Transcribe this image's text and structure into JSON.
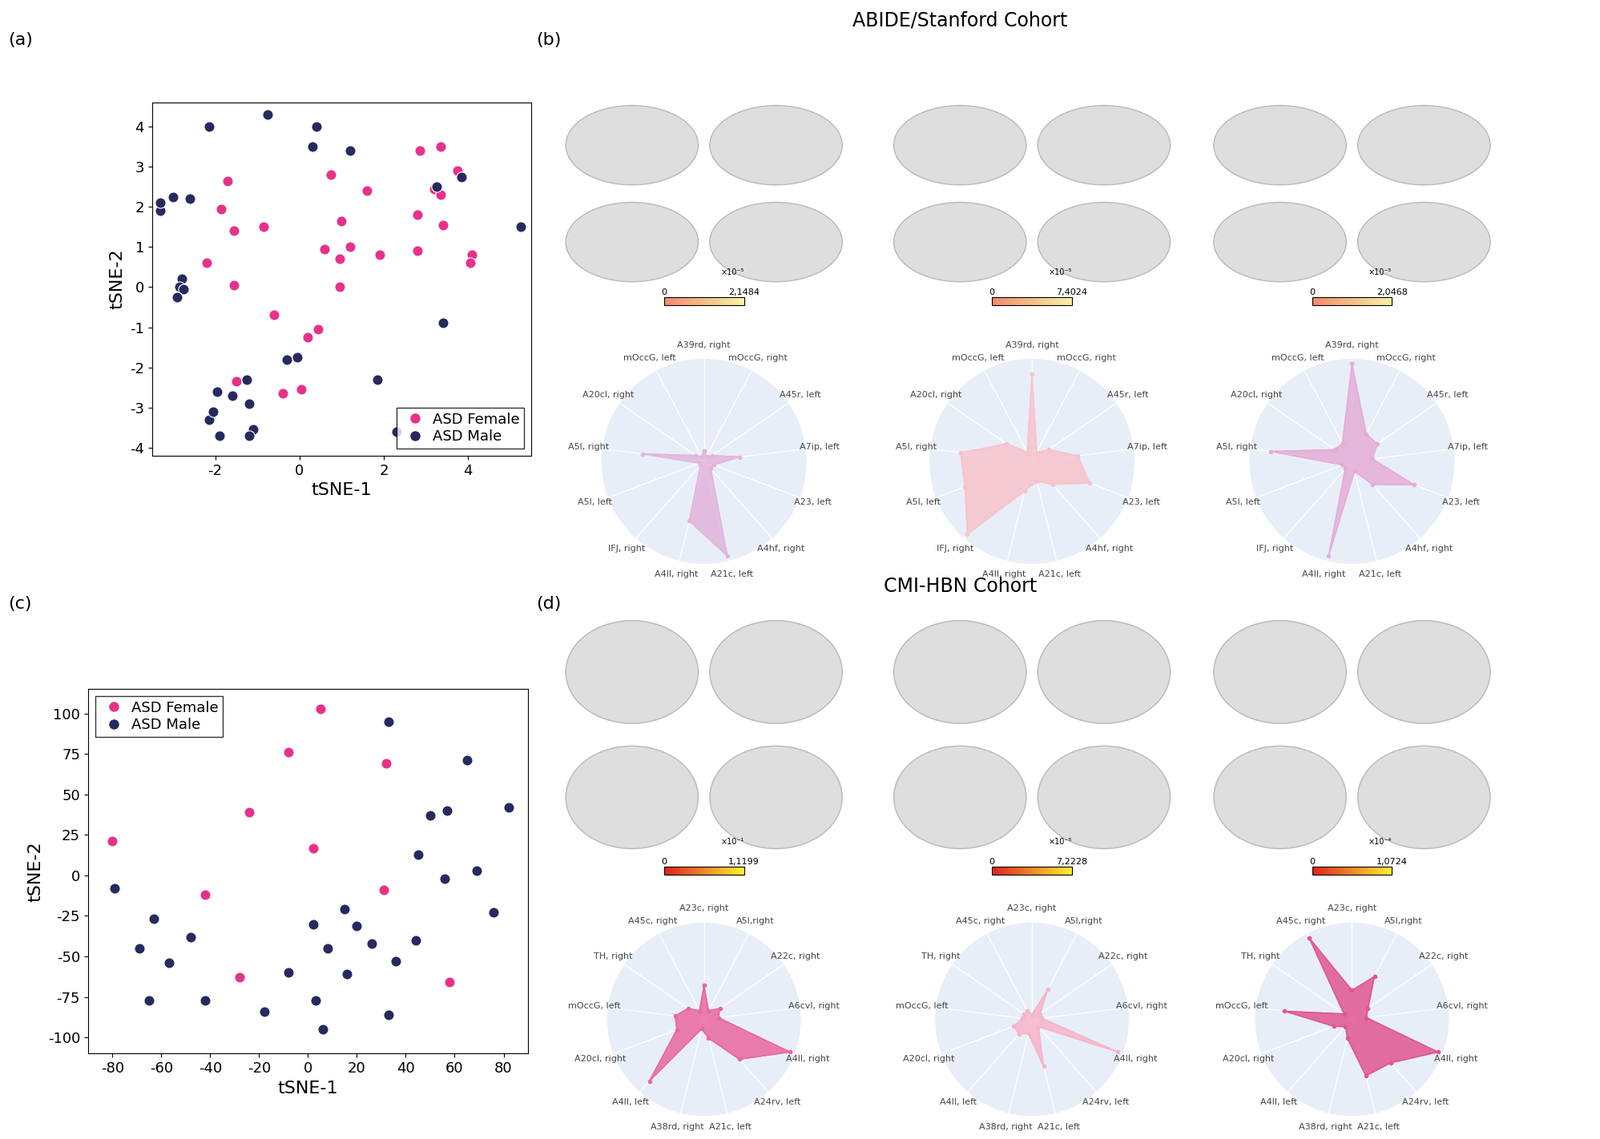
{
  "figure": {
    "headings": [
      "ABIDE/Stanford Cohort",
      "CMI-HBN Cohort"
    ],
    "panel_labels": [
      "(a)",
      "(b)",
      "(c)",
      "(d)"
    ]
  },
  "chart_data": [
    {
      "type": "scatter",
      "panel": "(a)",
      "x_label": "tSNE-1",
      "y_label": "tSNE-2",
      "xlim": [
        -3.5,
        5.5
      ],
      "xticks": [
        -2,
        0,
        2,
        4
      ],
      "ylim": [
        -4.2,
        4.6
      ],
      "yticks": [
        -4,
        -3,
        -2,
        -1,
        0,
        1,
        2,
        3,
        4
      ],
      "legend": "lower right",
      "series": [
        {
          "name": "ASD Female",
          "color": "#e8318a",
          "x": [
            -1.7,
            -1.85,
            -1.55,
            -0.85,
            -2.2,
            -1.55,
            0.75,
            1.0,
            0.6,
            1.2,
            0.95,
            0.95,
            1.6,
            1.9,
            2.85,
            3.35,
            3.2,
            3.35,
            2.8,
            3.75,
            3.4,
            2.8,
            4.1,
            4.05,
            -0.6,
            0.45,
            0.2,
            -0.4,
            0.05,
            -1.5
          ],
          "y": [
            2.65,
            1.95,
            1.4,
            1.5,
            0.6,
            0.05,
            2.8,
            1.65,
            0.95,
            1.0,
            0.7,
            0.0,
            2.4,
            0.8,
            3.4,
            3.5,
            2.45,
            2.3,
            1.8,
            2.9,
            1.55,
            0.9,
            0.8,
            0.6,
            -0.7,
            -1.05,
            -1.25,
            -2.65,
            -2.55,
            -2.35
          ]
        },
        {
          "name": "ASD Male",
          "color": "#262a5e",
          "x": [
            -2.15,
            -0.75,
            0.4,
            0.3,
            1.2,
            -3.3,
            -3.3,
            -3.0,
            -2.6,
            -2.8,
            -2.85,
            -2.75,
            -2.9,
            3.25,
            3.85,
            5.25,
            3.4,
            -0.3,
            -0.05,
            -1.95,
            -1.6,
            -1.25,
            -2.15,
            -2.05,
            -1.9,
            -1.2,
            -1.1,
            -1.2,
            1.85,
            2.3
          ],
          "y": [
            4.0,
            4.3,
            4.0,
            3.5,
            3.4,
            1.9,
            2.1,
            2.25,
            2.2,
            0.2,
            0.0,
            -0.05,
            -0.25,
            2.5,
            2.75,
            1.5,
            -0.9,
            -1.8,
            -1.75,
            -2.6,
            -2.7,
            -2.3,
            -3.3,
            -3.1,
            -3.7,
            -2.9,
            -3.55,
            -3.7,
            -2.3,
            -3.6
          ]
        }
      ]
    },
    {
      "type": "scatter",
      "panel": "(c)",
      "x_label": "tSNE-1",
      "y_label": "tSNE-2",
      "xlim": [
        -90,
        90
      ],
      "xticks": [
        -80,
        -60,
        -40,
        -20,
        0,
        20,
        40,
        60,
        80
      ],
      "ylim": [
        -110,
        115
      ],
      "yticks": [
        -100,
        -75,
        -50,
        -25,
        0,
        25,
        50,
        75,
        100
      ],
      "legend": "upper left",
      "series": [
        {
          "name": "ASD Female",
          "color": "#e8318a",
          "x": [
            -80,
            -42,
            -24,
            -8,
            5,
            2,
            32,
            31,
            -28,
            58
          ],
          "y": [
            21,
            -12,
            39,
            76,
            103,
            17,
            69,
            -9,
            -63,
            -66
          ]
        },
        {
          "name": "ASD Male",
          "color": "#262a5e",
          "x": [
            -79,
            -69,
            -63,
            -57,
            -48,
            -65,
            -42,
            -18,
            -8,
            2,
            8,
            15,
            20,
            16,
            26,
            33,
            36,
            44,
            45,
            50,
            56,
            57,
            65,
            69,
            76,
            82,
            3,
            6,
            33
          ],
          "y": [
            -8,
            -45,
            -27,
            -54,
            -38,
            -77,
            -77,
            -84,
            -60,
            -30,
            -45,
            -21,
            -31,
            -61,
            -42,
            95,
            -53,
            -40,
            13,
            37,
            -2,
            40,
            71,
            3,
            -23,
            42,
            -77,
            -95,
            -86
          ]
        }
      ]
    },
    {
      "type": "radar",
      "panel": "(b)",
      "color": "#e2b4dc",
      "ylim": [
        0,
        1
      ],
      "tick_labels": "x",
      "categories": [
        "A39rd, right",
        "mOccG, right",
        "A45r, left",
        "A7ip, left",
        "A23, left",
        "A4hf, right",
        "A21c, left",
        "A4ll, right",
        "IFJ, right",
        "A5l, left",
        "A5l, right",
        "A20cl, right",
        "mOccG, left"
      ],
      "values": [
        0.1,
        0.05,
        0.1,
        0.35,
        0.1,
        0.1,
        0.95,
        0.6,
        0.05,
        0.05,
        0.6,
        0.1,
        0.05
      ],
      "colorbar": {
        "colors": [
          "#f28a6c",
          "#f6f3a6"
        ],
        "range": [
          0,
          2.1484e-05
        ],
        "ticks": [
          0,
          {
            "value": 2.1484e-05,
            "label": "2,1484"
          }
        ],
        "multiplier": "×10⁻⁵"
      }
    },
    {
      "type": "radar",
      "panel": "(b)",
      "color": "#f7c3cb",
      "ylim": [
        0,
        1
      ],
      "tick_labels": "x",
      "categories": [
        "A39rd, right",
        "mOccG, right",
        "A45r, left",
        "A7ip, left",
        "A23, left",
        "A4hf, right",
        "A21c, left",
        "A4ll, right",
        "IFJ, right",
        "A5l, left",
        "A5l, right",
        "A20cl, right",
        "mOccG, left"
      ],
      "values": [
        0.85,
        0.1,
        0.2,
        0.45,
        0.6,
        0.3,
        0.2,
        0.3,
        0.95,
        0.7,
        0.7,
        0.3,
        0.1
      ],
      "colorbar": {
        "colors": [
          "#f28a6c",
          "#f6f3a6"
        ],
        "range": [
          0,
          7.4024e-05
        ],
        "ticks": [
          0,
          {
            "value": 7.4024e-05,
            "label": "7,4024"
          }
        ],
        "multiplier": "×10⁻⁵"
      }
    },
    {
      "type": "radar",
      "panel": "(b)",
      "color": "#e4acd8",
      "ylim": [
        0,
        1
      ],
      "tick_labels": "x",
      "categories": [
        "A39rd, right",
        "mOccG, right",
        "A45r, left",
        "A7ip, left",
        "A23, left",
        "A4hf, right",
        "A21c, left",
        "A4ll, right",
        "IFJ, right",
        "A5l, left",
        "A5l, right",
        "A20cl, right",
        "mOccG, left"
      ],
      "values": [
        0.95,
        0.3,
        0.3,
        0.2,
        0.65,
        0.3,
        0.1,
        0.95,
        0.1,
        0.1,
        0.8,
        0.2,
        0.2
      ],
      "colorbar": {
        "colors": [
          "#f28a6c",
          "#f6f3a6"
        ],
        "range": [
          0,
          2.0468e-05
        ],
        "ticks": [
          0,
          {
            "value": 2.0468e-05,
            "label": "2,0468"
          }
        ],
        "multiplier": "×10⁻⁵"
      }
    },
    {
      "type": "radar",
      "panel": "(d)",
      "color": "#e8679e",
      "ylim": [
        0,
        1
      ],
      "tick_labels": "x",
      "categories": [
        "A23c, right",
        "A5l,right",
        "A22c, right",
        "A6cvl, right",
        "A4ll, right",
        "A24rv, left",
        "A21c, left",
        "A38rd, right",
        "A4ll, left",
        "A20cl, right",
        "mOccG, left",
        "TH, right",
        "A45c, right"
      ],
      "values": [
        0.35,
        0.1,
        0.2,
        0.15,
        0.95,
        0.55,
        0.2,
        0.1,
        0.85,
        0.3,
        0.3,
        0.2,
        0.1
      ],
      "colorbar": {
        "colors": [
          "#e0201a",
          "#fff030"
        ],
        "range": [
          0,
          0.11199
        ],
        "ticks": [
          0,
          {
            "value": 0.11199,
            "label": "1,1199"
          }
        ],
        "multiplier": "×10⁻¹"
      }
    },
    {
      "type": "radar",
      "panel": "(d)",
      "color": "#f5b4c9",
      "ylim": [
        0,
        1
      ],
      "tick_labels": "x",
      "categories": [
        "A23c, right",
        "A5l,right",
        "A22c, right",
        "A6cvl, right",
        "A4ll, right",
        "A24rv, left",
        "A21c, left",
        "A38rd, right",
        "A4ll, left",
        "A20cl, right",
        "mOccG, left",
        "TH, right",
        "A45c, right"
      ],
      "values": [
        0.05,
        0.35,
        0.1,
        0.1,
        0.95,
        0.1,
        0.5,
        0.15,
        0.2,
        0.2,
        0.1,
        0.1,
        0.1
      ],
      "colorbar": {
        "colors": [
          "#e0201a",
          "#fff030"
        ],
        "range": [
          0,
          7.2228e-05
        ],
        "ticks": [
          0,
          {
            "value": 7.2228e-05,
            "label": "7,2228"
          }
        ],
        "multiplier": "×10⁻⁵"
      }
    },
    {
      "type": "radar",
      "panel": "(d)",
      "color": "#e05590",
      "ylim": [
        0,
        1
      ],
      "tick_labels": "x",
      "categories": [
        "A23c, right",
        "A5l,right",
        "A22c, right",
        "A6cvl, right",
        "A4ll, right",
        "A24rv, left",
        "A21c, left",
        "A38rd, right",
        "A4ll, left",
        "A20cl, right",
        "mOccG, left",
        "TH, right",
        "A45c, right"
      ],
      "values": [
        0.3,
        0.5,
        0.2,
        0.15,
        0.95,
        0.6,
        0.6,
        0.2,
        0.1,
        0.2,
        0.7,
        0.1,
        0.95
      ],
      "colorbar": {
        "colors": [
          "#e0201a",
          "#fff030"
        ],
        "range": [
          0,
          0.00010724
        ],
        "ticks": [
          0,
          {
            "value": 0.00010724,
            "label": "1,0724"
          }
        ],
        "multiplier": "×10⁻⁴"
      }
    }
  ]
}
